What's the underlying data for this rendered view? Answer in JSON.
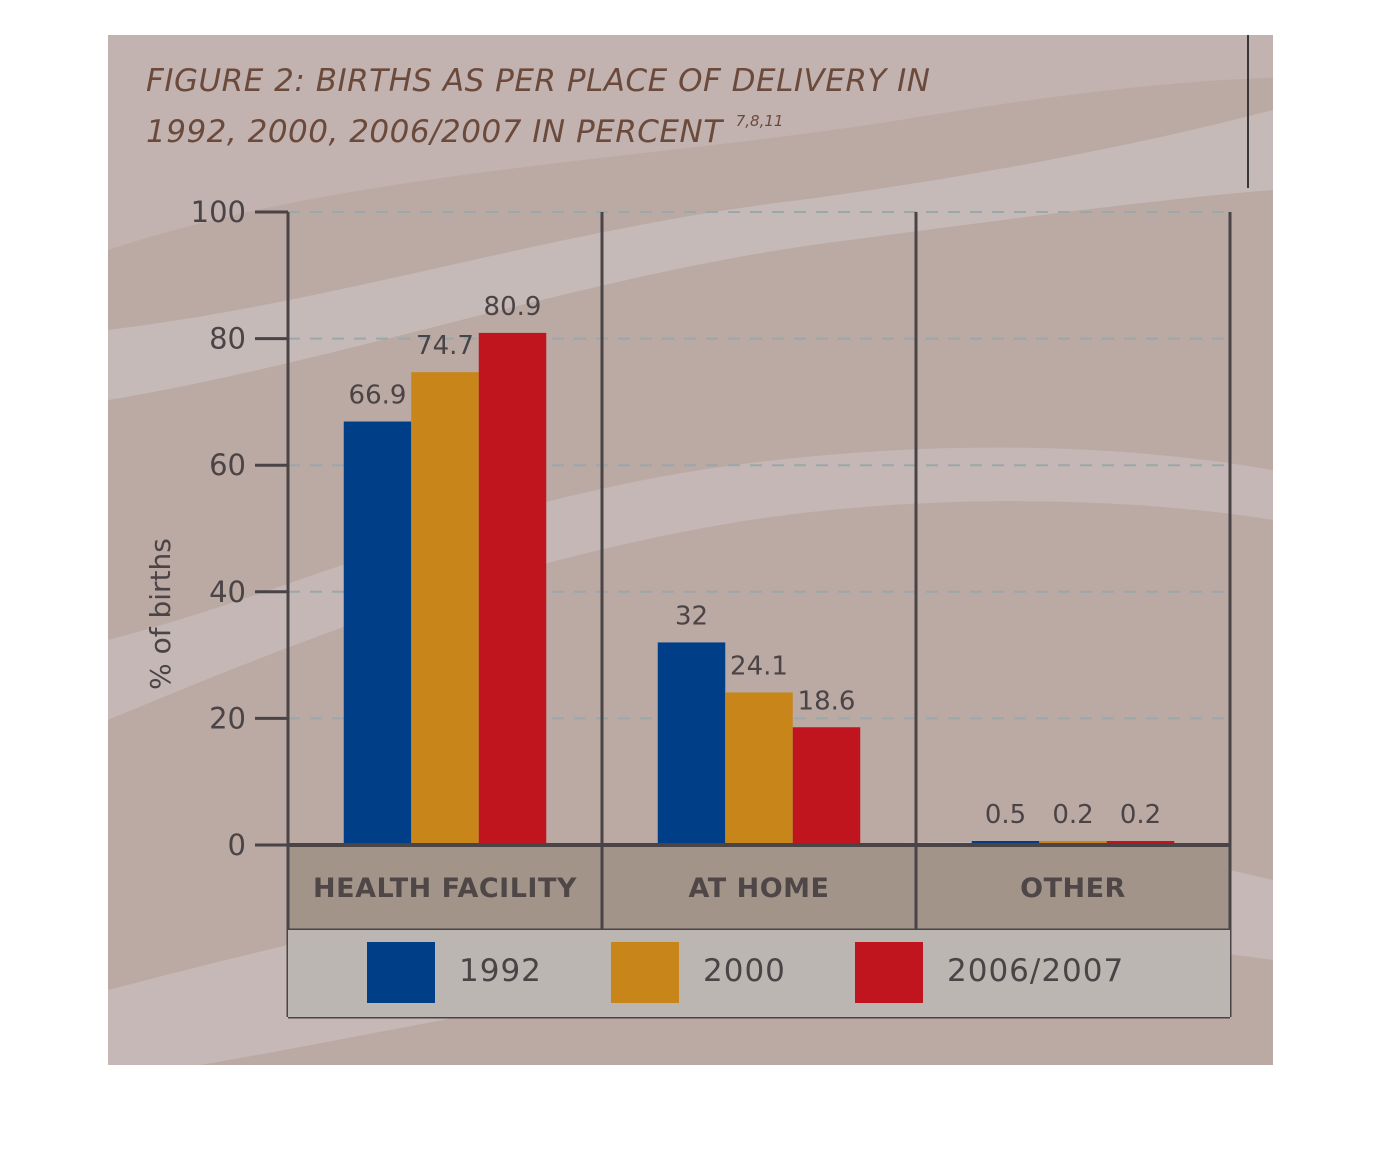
{
  "chart_data": {
    "type": "bar",
    "title": "FIGURE 2: BIRTHS AS PER PLACE OF DELIVERY IN",
    "title_line2": "1992, 2000, 2006/2007 IN PERCENT",
    "title_superscript": "7,8,11",
    "ylabel": "% of births",
    "xlabel": "",
    "ylim": [
      0,
      100
    ],
    "yticks": [
      "0",
      "20",
      "40",
      "60",
      "80",
      "100"
    ],
    "grid": true,
    "legend_position": "bottom",
    "categories": [
      "HEALTH FACILITY",
      "AT HOME",
      "OTHER"
    ],
    "series": [
      {
        "name": "1992",
        "color": "#003f87",
        "values": [
          66.9,
          32,
          0.5
        ],
        "labels": [
          "66.9",
          "32",
          "0.5"
        ]
      },
      {
        "name": "2000",
        "color": "#c8861a",
        "values": [
          74.7,
          24.1,
          0.2
        ],
        "labels": [
          "74.7",
          "24.1",
          "0.2"
        ]
      },
      {
        "name": "2006/2007",
        "color": "#c0141e",
        "values": [
          80.9,
          18.6,
          0.2
        ],
        "labels": [
          "80.9",
          "18.6",
          "0.2"
        ]
      }
    ]
  },
  "colors": {
    "background": "#bba9a4",
    "wave_light": "#c5b8b6",
    "category_band": "#a29488",
    "legend_band": "#bcb6b3",
    "axis": "#4a4446",
    "gridline": "#9aa8ab"
  }
}
